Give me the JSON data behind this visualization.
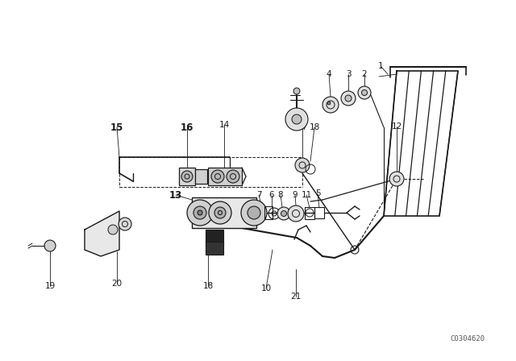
{
  "bg_color": "#ffffff",
  "line_color": "#1a1a1a",
  "watermark": "C0304620",
  "fig_w": 6.4,
  "fig_h": 4.48,
  "dpi": 100
}
